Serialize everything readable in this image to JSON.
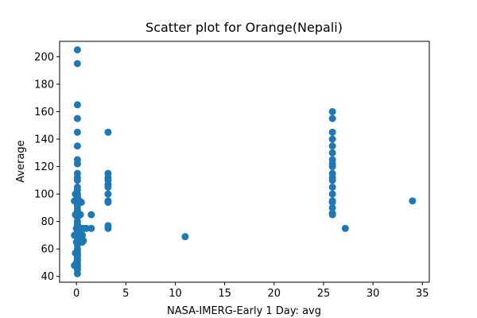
{
  "chart_data": {
    "type": "scatter",
    "title": "Scatter plot for Orange(Nepali)",
    "xlabel": "NASA-IMERG-Early 1 Day: avg",
    "ylabel": "Average",
    "xlim": [
      -1.7,
      35.7
    ],
    "ylim": [
      35.8,
      211.2
    ],
    "xticks": [
      0,
      5,
      10,
      15,
      20,
      25,
      30,
      35
    ],
    "yticks": [
      40,
      60,
      80,
      100,
      120,
      140,
      160,
      180,
      200
    ],
    "xtick_labels": [
      "0",
      "5",
      "10",
      "15",
      "20",
      "25",
      "30",
      "35"
    ],
    "ytick_labels": [
      "40",
      "60",
      "80",
      "100",
      "120",
      "140",
      "160",
      "180",
      "200"
    ],
    "grid": false,
    "marker_color": "#1f77b4",
    "series": [
      {
        "x": [
          0.1,
          0.1,
          0.1,
          0.1,
          0.1,
          0.1,
          0.1,
          0.1,
          0.1,
          0.1,
          0.1,
          0.1,
          0.1,
          0.1,
          0.1,
          0.1,
          0.1,
          0.1,
          0.1,
          0.1,
          0.1,
          0.1,
          0.1,
          0.1,
          0.1,
          0.1,
          0.1,
          0.1,
          0.1,
          0.1,
          0.1,
          0.1,
          0.1,
          0.1,
          0.1,
          0.1,
          0.1,
          0.1,
          0.1,
          0.1,
          0.1,
          0.1,
          0.1,
          -0.1,
          -0.2,
          -0.1,
          0.0,
          -0.2,
          0.0,
          -0.1,
          0.0,
          -0.2,
          0.3,
          0.4,
          0.5,
          0.3,
          0.6,
          0.5,
          0.4,
          0.7,
          0.6,
          0.5,
          0.6,
          0.5,
          0.8,
          1.0,
          1.5,
          1.5,
          3.2,
          3.2,
          3.2,
          3.2,
          3.2,
          3.2,
          3.2,
          3.2,
          3.2,
          3.2,
          3.2,
          11.0,
          25.9,
          25.9,
          25.9,
          25.9,
          25.9,
          25.9,
          25.9,
          25.9,
          25.9,
          25.9,
          25.9,
          25.9,
          25.9,
          25.9,
          25.9,
          25.9,
          25.9,
          25.9,
          25.9,
          27.2,
          34.0
        ],
        "y": [
          205,
          195,
          165,
          155,
          145,
          135,
          125,
          122,
          115,
          112,
          105,
          103,
          100,
          98,
          95,
          92,
          90,
          88,
          85,
          83,
          80,
          78,
          76,
          75,
          73,
          72,
          70,
          68,
          66,
          65,
          63,
          60,
          58,
          56,
          55,
          53,
          52,
          50,
          48,
          47,
          45,
          42,
          110,
          100,
          95,
          85,
          75,
          70,
          65,
          57,
          50,
          48,
          95,
          85,
          75,
          72,
          70,
          68,
          67,
          66,
          65,
          68,
          70,
          94,
          75,
          75,
          85,
          75,
          145,
          115,
          112,
          110,
          107,
          105,
          100,
          95,
          94,
          77,
          75,
          69,
          160,
          155,
          145,
          140,
          135,
          130,
          125,
          122,
          120,
          115,
          112,
          110,
          105,
          100,
          95,
          94,
          90,
          86,
          85,
          75,
          95
        ]
      }
    ]
  }
}
